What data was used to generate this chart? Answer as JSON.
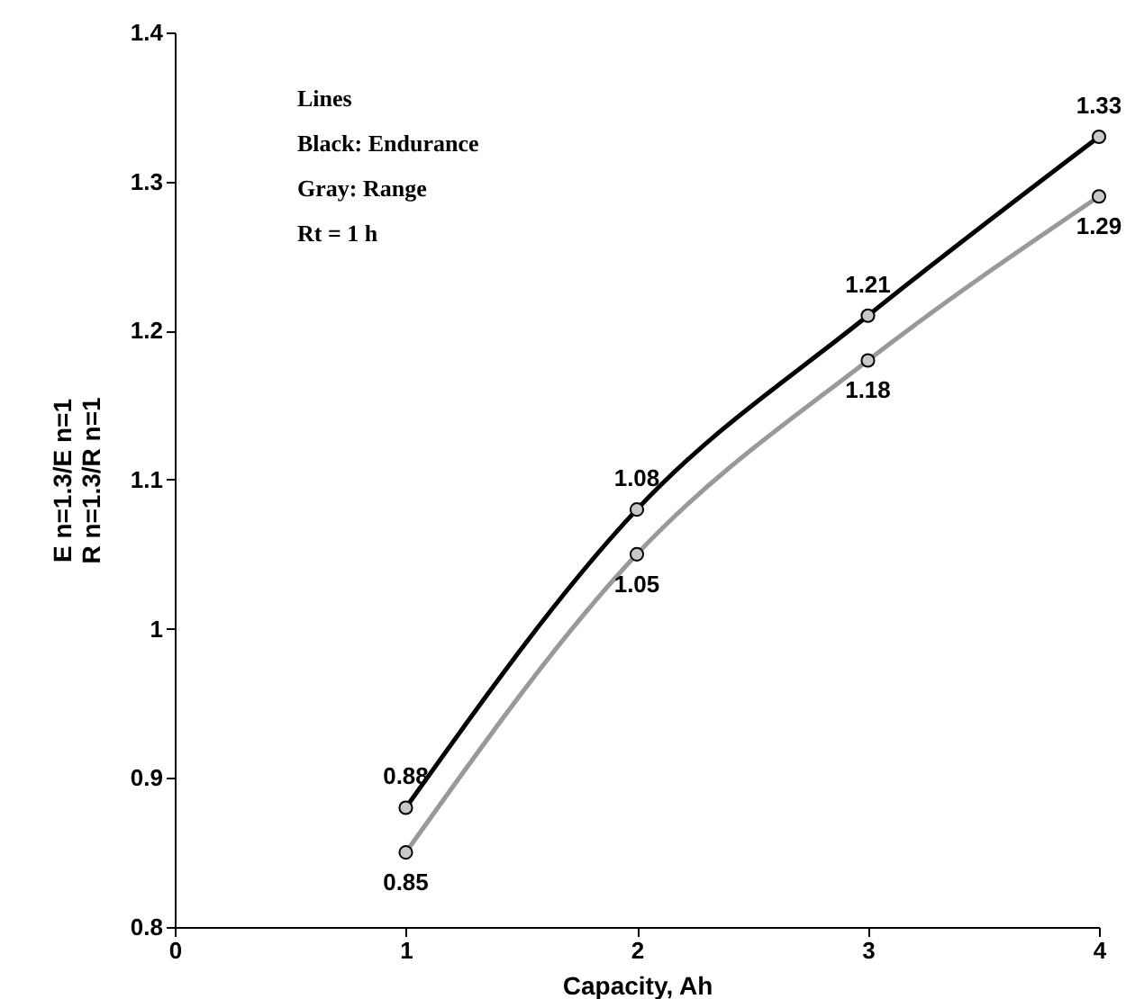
{
  "chart_data": {
    "type": "line",
    "xlabel": "Capacity, Ah",
    "ylabel": "E n=1.3/E n=1\nR n=1.3/R n=1",
    "x": [
      1,
      2,
      3,
      4
    ],
    "series": [
      {
        "color": "#000000",
        "values": [
          0.88,
          1.08,
          1.21,
          1.33
        ]
      },
      {
        "color": "#999999",
        "values": [
          0.85,
          1.05,
          1.18,
          1.29
        ]
      }
    ],
    "xlim": [
      0,
      4
    ],
    "xticks": [
      0,
      1,
      2,
      3,
      4
    ],
    "ylim": [
      0.8,
      1.4
    ],
    "yticks": [
      0.8,
      0.9,
      1,
      1.1,
      1.2,
      1.3,
      1.4
    ],
    "marker": "circle",
    "line_style": "solid",
    "data_labels": true,
    "annotations": [
      "Lines",
      "Black: Endurance",
      "Gray: Range",
      "Rt = 1 h"
    ]
  }
}
